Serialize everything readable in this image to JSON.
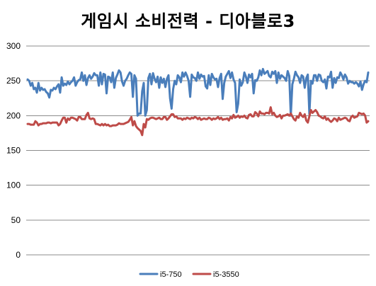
{
  "chart_data": {
    "type": "line",
    "title": "게임시 소비전력 - 디아블로3",
    "xlabel": "",
    "ylabel": "",
    "ylim": [
      0,
      300
    ],
    "yticks": [
      0,
      50,
      100,
      150,
      200,
      250,
      300
    ],
    "grid": true,
    "legend_position": "bottom",
    "series": [
      {
        "name": "i5-750",
        "color": "#4a7ebb",
        "values": [
          252,
          250,
          243,
          247,
          238,
          240,
          233,
          247,
          236,
          240,
          237,
          238,
          234,
          232,
          226,
          237,
          236,
          240,
          238,
          242,
          245,
          233,
          255,
          243,
          246,
          244,
          249,
          245,
          248,
          250,
          255,
          243,
          248,
          251,
          252,
          262,
          250,
          258,
          244,
          254,
          258,
          253,
          256,
          261,
          258,
          258,
          243,
          262,
          245,
          260,
          259,
          232,
          256,
          255,
          248,
          262,
          240,
          254,
          259,
          265,
          262,
          249,
          243,
          250,
          253,
          258,
          262,
          260,
          227,
          258,
          253,
          200,
          203,
          203,
          235,
          247,
          200,
          208,
          254,
          260,
          245,
          261,
          253,
          248,
          256,
          240,
          255,
          247,
          253,
          241,
          253,
          258,
          225,
          210,
          238,
          250,
          245,
          258,
          255,
          248,
          262,
          256,
          262,
          257,
          250,
          227,
          259,
          255,
          254,
          250,
          262,
          253,
          259,
          256,
          257,
          242,
          239,
          258,
          244,
          260,
          255,
          252,
          253,
          241,
          254,
          260,
          224,
          247,
          256,
          260,
          264,
          254,
          262,
          252,
          247,
          205,
          217,
          252,
          243,
          248,
          262,
          256,
          247,
          259,
          255,
          260,
          232,
          251,
          250,
          255,
          265,
          258,
          267,
          260,
          262,
          264,
          257,
          255,
          263,
          260,
          264,
          247,
          262,
          253,
          258,
          256,
          254,
          250,
          264,
          257,
          200,
          245,
          253,
          263,
          258,
          255,
          247,
          258,
          256,
          240,
          254,
          259,
          202,
          250,
          246,
          258,
          258,
          250,
          259,
          258,
          250,
          248,
          252,
          239,
          256,
          255,
          263,
          240,
          254,
          247,
          255,
          254,
          262,
          258,
          252,
          259,
          255,
          246,
          250,
          248,
          248,
          246,
          248,
          246,
          242,
          249,
          237,
          245,
          250,
          248,
          262
        ]
      },
      {
        "name": "i5-3550",
        "color": "#be4b48",
        "values": [
          188,
          188,
          187,
          187,
          187,
          192,
          190,
          186,
          188,
          188,
          189,
          189,
          189,
          190,
          190,
          189,
          190,
          190,
          190,
          190,
          186,
          188,
          193,
          197,
          197,
          190,
          196,
          194,
          197,
          197,
          196,
          195,
          193,
          198,
          198,
          195,
          195,
          195,
          201,
          204,
          196,
          195,
          196,
          195,
          188,
          188,
          187,
          186,
          188,
          186,
          188,
          186,
          187,
          185,
          185,
          186,
          186,
          186,
          187,
          189,
          188,
          188,
          188,
          189,
          190,
          191,
          194,
          198,
          186,
          192,
          185,
          182,
          180,
          178,
          172,
          188,
          183,
          195,
          194,
          196,
          197,
          197,
          196,
          195,
          196,
          197,
          195,
          195,
          198,
          198,
          194,
          196,
          199,
          202,
          202,
          198,
          199,
          196,
          196,
          196,
          194,
          196,
          195,
          197,
          196,
          195,
          197,
          196,
          198,
          197,
          195,
          197,
          194,
          195,
          196,
          195,
          195,
          197,
          196,
          194,
          196,
          195,
          196,
          198,
          195,
          197,
          194,
          195,
          195,
          196,
          193,
          198,
          196,
          201,
          197,
          198,
          200,
          197,
          199,
          198,
          200,
          197,
          196,
          201,
          202,
          199,
          199,
          205,
          203,
          199,
          206,
          203,
          203,
          202,
          204,
          204,
          203,
          212,
          202,
          204,
          200,
          198,
          199,
          201,
          196,
          200,
          200,
          201,
          202,
          200,
          203,
          199,
          195,
          193,
          199,
          197,
          204,
          200,
          198,
          202,
          193,
          190,
          199,
          208,
          204,
          206,
          208,
          205,
          200,
          199,
          197,
          196,
          199,
          194,
          196,
          193,
          191,
          193,
          196,
          195,
          192,
          197,
          194,
          195,
          196,
          197,
          196,
          193,
          192,
          198,
          200,
          197,
          198,
          199,
          204,
          203,
          202,
          203,
          200,
          190,
          192
        ]
      }
    ]
  }
}
